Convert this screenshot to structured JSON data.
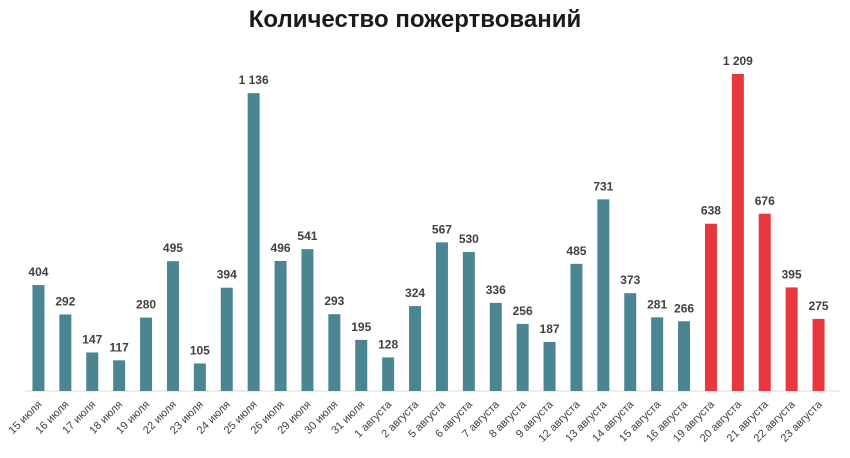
{
  "chart_data": {
    "type": "bar",
    "title": "Количество пожертвований",
    "xlabel": "",
    "ylabel": "",
    "ylim": [
      0,
      1250
    ],
    "grid": false,
    "colors": {
      "default": "#4a8591",
      "highlight": "#e8383d",
      "axis": "#d9d9d9"
    },
    "highlighted_categories": [
      "19 августа",
      "20 августа",
      "21 августа",
      "22 августа",
      "23 августа"
    ],
    "categories": [
      "15 июля",
      "16 июля",
      "17 июля",
      "18 июля",
      "19 июля",
      "22 июля",
      "23 июля",
      "24 июля",
      "25 июля",
      "26 июля",
      "29 июля",
      "30 июля",
      "31 июля",
      "1 августа",
      "2 августа",
      "5 августа",
      "6 августа",
      "7 августа",
      "8 августа",
      "9 августа",
      "12 августа",
      "13 августа",
      "14 августа",
      "15 августа",
      "16 августа",
      "19 августа",
      "20 августа",
      "21 августа",
      "22 августа",
      "23 августа"
    ],
    "values": [
      404,
      292,
      147,
      117,
      280,
      495,
      105,
      394,
      1136,
      496,
      541,
      293,
      195,
      128,
      324,
      567,
      530,
      336,
      256,
      187,
      485,
      731,
      373,
      281,
      266,
      638,
      1209,
      676,
      395,
      275
    ],
    "value_labels": [
      "404",
      "292",
      "147",
      "117",
      "280",
      "495",
      "105",
      "394",
      "1 136",
      "496",
      "541",
      "293",
      "195",
      "128",
      "324",
      "567",
      "530",
      "336",
      "256",
      "187",
      "485",
      "731",
      "373",
      "281",
      "266",
      "638",
      "1 209",
      "676",
      "395",
      "275"
    ]
  }
}
